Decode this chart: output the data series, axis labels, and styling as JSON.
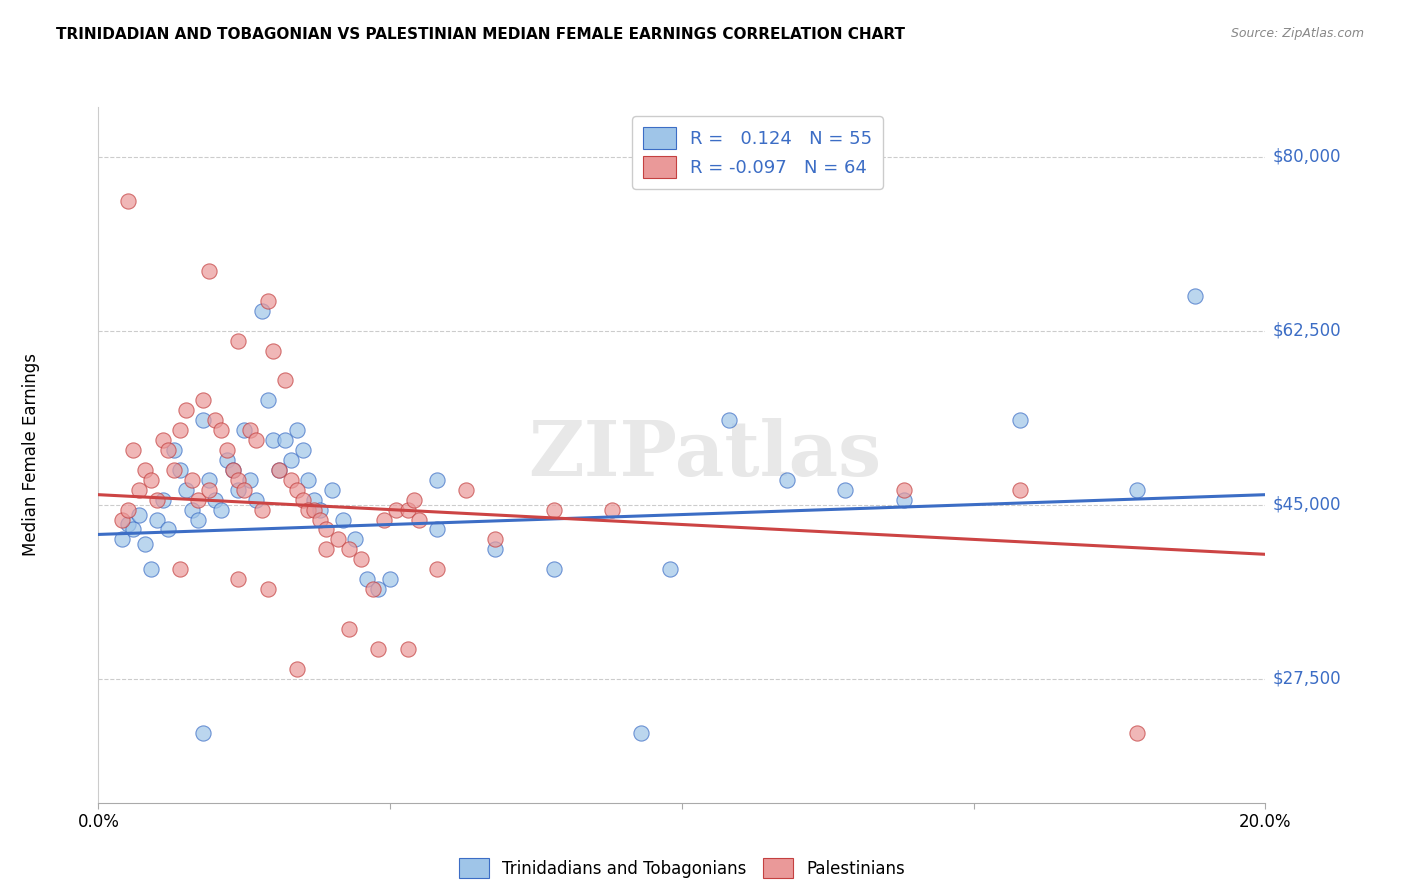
{
  "title": "TRINIDADIAN AND TOBAGONIAN VS PALESTINIAN MEDIAN FEMALE EARNINGS CORRELATION CHART",
  "source": "Source: ZipAtlas.com",
  "ylabel": "Median Female Earnings",
  "xlim": [
    0.0,
    0.2
  ],
  "ylim": [
    15000,
    85000
  ],
  "yticks": [
    27500,
    45000,
    62500,
    80000
  ],
  "ytick_labels": [
    "$27,500",
    "$45,000",
    "$62,500",
    "$80,000"
  ],
  "xticks": [
    0.0,
    0.05,
    0.1,
    0.15,
    0.2
  ],
  "xtick_labels": [
    "0.0%",
    "",
    "",
    "",
    "20.0%"
  ],
  "legend_r1": "R =   0.124",
  "legend_n1": "N = 55",
  "legend_r2": "R = -0.097",
  "legend_n2": "N = 64",
  "blue_color": "#9fc5e8",
  "pink_color": "#ea9999",
  "line_blue": "#3c6dc5",
  "line_pink": "#cc4444",
  "text_blue": "#3c6dc5",
  "watermark": "ZIPatlas",
  "blue_trend": [
    0.0,
    42000,
    0.2,
    46000
  ],
  "pink_trend": [
    0.0,
    46000,
    0.2,
    40000
  ],
  "blue_scatter": [
    [
      0.004,
      41500
    ],
    [
      0.005,
      43000
    ],
    [
      0.006,
      42500
    ],
    [
      0.007,
      44000
    ],
    [
      0.008,
      41000
    ],
    [
      0.009,
      38500
    ],
    [
      0.01,
      43500
    ],
    [
      0.011,
      45500
    ],
    [
      0.012,
      42500
    ],
    [
      0.013,
      50500
    ],
    [
      0.014,
      48500
    ],
    [
      0.015,
      46500
    ],
    [
      0.016,
      44500
    ],
    [
      0.017,
      43500
    ],
    [
      0.018,
      53500
    ],
    [
      0.019,
      47500
    ],
    [
      0.02,
      45500
    ],
    [
      0.021,
      44500
    ],
    [
      0.022,
      49500
    ],
    [
      0.023,
      48500
    ],
    [
      0.024,
      46500
    ],
    [
      0.025,
      52500
    ],
    [
      0.026,
      47500
    ],
    [
      0.027,
      45500
    ],
    [
      0.028,
      64500
    ],
    [
      0.029,
      55500
    ],
    [
      0.03,
      51500
    ],
    [
      0.031,
      48500
    ],
    [
      0.032,
      51500
    ],
    [
      0.033,
      49500
    ],
    [
      0.034,
      52500
    ],
    [
      0.035,
      50500
    ],
    [
      0.036,
      47500
    ],
    [
      0.037,
      45500
    ],
    [
      0.038,
      44500
    ],
    [
      0.04,
      46500
    ],
    [
      0.042,
      43500
    ],
    [
      0.044,
      41500
    ],
    [
      0.046,
      37500
    ],
    [
      0.048,
      36500
    ],
    [
      0.05,
      37500
    ],
    [
      0.058,
      42500
    ],
    [
      0.068,
      40500
    ],
    [
      0.078,
      38500
    ],
    [
      0.098,
      38500
    ],
    [
      0.108,
      53500
    ],
    [
      0.118,
      47500
    ],
    [
      0.128,
      46500
    ],
    [
      0.138,
      45500
    ],
    [
      0.158,
      53500
    ],
    [
      0.178,
      46500
    ],
    [
      0.018,
      22000
    ],
    [
      0.093,
      22000
    ],
    [
      0.058,
      47500
    ],
    [
      0.188,
      66000
    ]
  ],
  "pink_scatter": [
    [
      0.004,
      43500
    ],
    [
      0.005,
      44500
    ],
    [
      0.006,
      50500
    ],
    [
      0.007,
      46500
    ],
    [
      0.008,
      48500
    ],
    [
      0.009,
      47500
    ],
    [
      0.01,
      45500
    ],
    [
      0.011,
      51500
    ],
    [
      0.012,
      50500
    ],
    [
      0.013,
      48500
    ],
    [
      0.014,
      52500
    ],
    [
      0.015,
      54500
    ],
    [
      0.016,
      47500
    ],
    [
      0.017,
      45500
    ],
    [
      0.018,
      55500
    ],
    [
      0.019,
      46500
    ],
    [
      0.02,
      53500
    ],
    [
      0.021,
      52500
    ],
    [
      0.022,
      50500
    ],
    [
      0.023,
      48500
    ],
    [
      0.024,
      47500
    ],
    [
      0.025,
      46500
    ],
    [
      0.026,
      52500
    ],
    [
      0.027,
      51500
    ],
    [
      0.028,
      44500
    ],
    [
      0.029,
      65500
    ],
    [
      0.03,
      60500
    ],
    [
      0.031,
      48500
    ],
    [
      0.032,
      57500
    ],
    [
      0.033,
      47500
    ],
    [
      0.034,
      46500
    ],
    [
      0.035,
      45500
    ],
    [
      0.036,
      44500
    ],
    [
      0.037,
      44500
    ],
    [
      0.038,
      43500
    ],
    [
      0.039,
      42500
    ],
    [
      0.041,
      41500
    ],
    [
      0.043,
      40500
    ],
    [
      0.045,
      39500
    ],
    [
      0.047,
      36500
    ],
    [
      0.049,
      43500
    ],
    [
      0.051,
      44500
    ],
    [
      0.053,
      44500
    ],
    [
      0.054,
      45500
    ],
    [
      0.055,
      43500
    ],
    [
      0.014,
      38500
    ],
    [
      0.024,
      37500
    ],
    [
      0.029,
      36500
    ],
    [
      0.034,
      28500
    ],
    [
      0.039,
      40500
    ],
    [
      0.005,
      75500
    ],
    [
      0.019,
      68500
    ],
    [
      0.024,
      61500
    ],
    [
      0.138,
      46500
    ],
    [
      0.158,
      46500
    ],
    [
      0.178,
      22000
    ],
    [
      0.058,
      38500
    ],
    [
      0.068,
      41500
    ],
    [
      0.078,
      44500
    ],
    [
      0.088,
      44500
    ],
    [
      0.048,
      30500
    ],
    [
      0.053,
      30500
    ],
    [
      0.063,
      46500
    ],
    [
      0.043,
      32500
    ]
  ]
}
